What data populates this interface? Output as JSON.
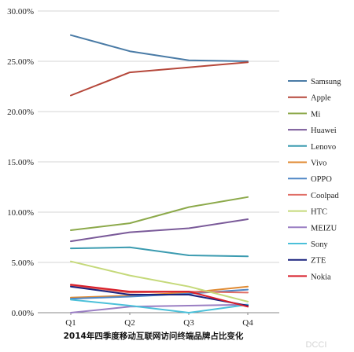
{
  "chart_data": {
    "type": "line",
    "title": "2014年四季度移动互联网访问终端品牌占比变化",
    "categories": [
      "Q1",
      "Q2",
      "Q3",
      "Q4"
    ],
    "y_tick_labels": [
      "0.00%",
      "5.00%",
      "10.00%",
      "15.00%",
      "20.00%",
      "25.00%",
      "30.00%"
    ],
    "ylim": [
      0,
      30
    ],
    "y_unit": "%",
    "grid": true,
    "legend_position": "right",
    "series": [
      {
        "name": "Samsung",
        "color": "#4a7ba6",
        "values": [
          27.6,
          26.0,
          25.1,
          25.0
        ]
      },
      {
        "name": "Apple",
        "color": "#b5473a",
        "values": [
          21.6,
          23.9,
          24.4,
          24.9
        ]
      },
      {
        "name": "Mi",
        "color": "#8ca94a",
        "values": [
          8.2,
          8.9,
          10.5,
          11.5
        ]
      },
      {
        "name": "Huawei",
        "color": "#7a5a99",
        "values": [
          7.1,
          8.0,
          8.4,
          9.3
        ]
      },
      {
        "name": "Lenovo",
        "color": "#3b9bb0",
        "values": [
          6.4,
          6.5,
          5.7,
          5.6
        ]
      },
      {
        "name": "Vivo",
        "color": "#e08a32",
        "values": [
          1.5,
          1.7,
          2.0,
          2.6
        ]
      },
      {
        "name": "OPPO",
        "color": "#4f86c6",
        "values": [
          1.4,
          1.6,
          1.9,
          2.3
        ]
      },
      {
        "name": "Coolpad",
        "color": "#e06e66",
        "values": [
          2.7,
          2.0,
          2.1,
          2.0
        ]
      },
      {
        "name": "HTC",
        "color": "#c5d97a",
        "values": [
          5.1,
          3.7,
          2.6,
          1.1
        ]
      },
      {
        "name": "MEIZU",
        "color": "#9a7ec3",
        "values": [
          0.0,
          0.6,
          0.7,
          0.8
        ]
      },
      {
        "name": "Sony",
        "color": "#4bc0d9",
        "values": [
          1.3,
          0.7,
          0.0,
          0.8
        ]
      },
      {
        "name": "ZTE",
        "color": "#1a237e",
        "values": [
          2.6,
          1.8,
          1.8,
          0.7
        ]
      },
      {
        "name": "Nokia",
        "color": "#d81e2a",
        "values": [
          2.8,
          2.1,
          2.1,
          0.6
        ]
      }
    ]
  },
  "watermark": "DCCI"
}
